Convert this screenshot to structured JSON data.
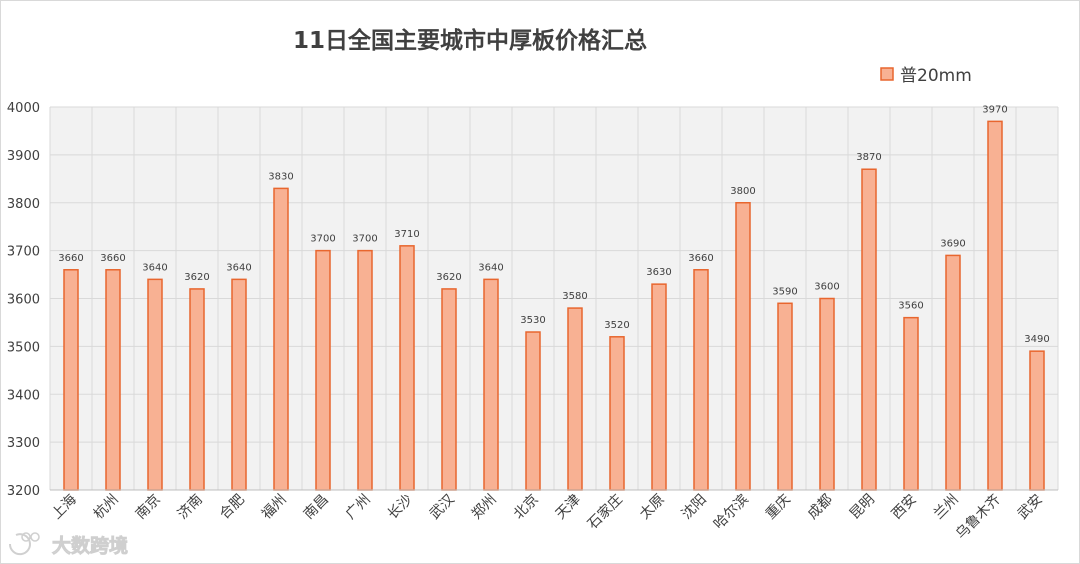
{
  "chart_data": {
    "type": "bar",
    "title": "11日全国主要城市中厚板价格汇总",
    "categories": [
      "上海",
      "杭州",
      "南京",
      "济南",
      "合肥",
      "福州",
      "南昌",
      "广州",
      "长沙",
      "武汉",
      "郑州",
      "北京",
      "天津",
      "石家庄",
      "太原",
      "沈阳",
      "哈尔滨",
      "重庆",
      "成都",
      "昆明",
      "西安",
      "兰州",
      "乌鲁木齐",
      "武安"
    ],
    "series": [
      {
        "name": "普20mm",
        "values": [
          3660,
          3660,
          3640,
          3620,
          3640,
          3830,
          3700,
          3700,
          3710,
          3620,
          3640,
          3530,
          3580,
          3520,
          3630,
          3660,
          3800,
          3590,
          3600,
          3870,
          3560,
          3690,
          3970,
          3490
        ]
      }
    ],
    "ylim": [
      3200,
      4000
    ],
    "yticks": [
      3200,
      3300,
      3400,
      3500,
      3600,
      3700,
      3800,
      3900,
      4000
    ],
    "grid": true,
    "legend_position": "top-right",
    "colors": {
      "fill": "#f8b193",
      "stroke": "#e8662e",
      "grid": "#d9d9d9",
      "plot_bg": "#f2f2f2"
    },
    "data_labels": true
  },
  "watermark": {
    "text": "大数跨境",
    "icon": "logo-icon"
  }
}
